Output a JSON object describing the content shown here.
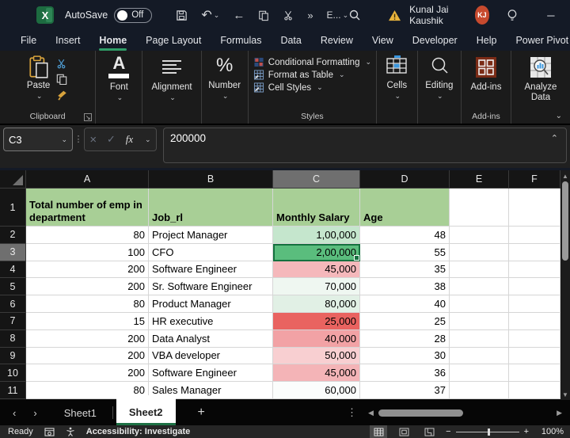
{
  "title_bar": {
    "autosave_label": "AutoSave",
    "autosave_state": "Off",
    "quick_access_overflow": "E...",
    "user_name": "Kunal Jai Kaushik",
    "user_initials": "KJ"
  },
  "menu_bar": {
    "tabs": [
      "File",
      "Insert",
      "Home",
      "Page Layout",
      "Formulas",
      "Data",
      "Review",
      "View",
      "Developer",
      "Help",
      "Power Pivot"
    ],
    "active_tab": "Home"
  },
  "ribbon": {
    "paste_label": "Paste",
    "clipboard_group_label": "Clipboard",
    "font_group_label": "Font",
    "alignment_group_label": "Alignment",
    "number_group_label": "Number",
    "conditional_formatting_label": "Conditional Formatting",
    "format_as_table_label": "Format as Table",
    "cell_styles_label": "Cell Styles",
    "styles_group_label": "Styles",
    "cells_group_label": "Cells",
    "editing_group_label": "Editing",
    "addins_button_label": "Add-ins",
    "analyze_data_label": "Analyze Data",
    "addins_group_label": "Add-ins"
  },
  "formula_bar": {
    "name_box": "C3",
    "fx_label": "fx",
    "value": "200000"
  },
  "grid": {
    "columns": [
      "A",
      "B",
      "C",
      "D",
      "E",
      "F"
    ],
    "selected_column": "C",
    "selected_row": "3",
    "selected_cell": "C3",
    "header_row_fill": "#a8cf96",
    "selection_color": "#15713f",
    "rows": [
      {
        "n": "1",
        "a": "Total number of emp in department",
        "b": "Job_rl",
        "c": "Monthly Salary",
        "d": "Age",
        "header": true
      },
      {
        "n": "2",
        "a": "80",
        "b": "Project Manager",
        "c": "1,00,000",
        "d": "48",
        "c_fill": "#c5e6cd"
      },
      {
        "n": "3",
        "a": "100",
        "b": "CFO",
        "c": "2,00,000",
        "d": "55",
        "c_fill": "#5abd7d",
        "selected": true
      },
      {
        "n": "4",
        "a": "200",
        "b": "Software Engineer",
        "c": "45,000",
        "d": "35",
        "c_fill": "#f5b8bb"
      },
      {
        "n": "5",
        "a": "200",
        "b": "Sr. Software Engineer",
        "c": "70,000",
        "d": "38",
        "c_fill": "#eff7f1"
      },
      {
        "n": "6",
        "a": "80",
        "b": "Product Manager",
        "c": "80,000",
        "d": "40",
        "c_fill": "#e1f0e5"
      },
      {
        "n": "7",
        "a": "15",
        "b": "HR executive",
        "c": "25,000",
        "d": "25",
        "c_fill": "#e96360"
      },
      {
        "n": "8",
        "a": "200",
        "b": "Data Analyst",
        "c": "40,000",
        "d": "28",
        "c_fill": "#f2a2a5"
      },
      {
        "n": "9",
        "a": "200",
        "b": "VBA developer",
        "c": "50,000",
        "d": "30",
        "c_fill": "#f8cfd1"
      },
      {
        "n": "10",
        "a": "200",
        "b": "Software Engineer",
        "c": "45,000",
        "d": "36",
        "c_fill": "#f4b4b7"
      },
      {
        "n": "11",
        "a": "80",
        "b": "Sales Manager",
        "c": "60,000",
        "d": "37",
        "c_fill": "#fbfdfc"
      }
    ]
  },
  "sheet_tabs": {
    "tabs": [
      "Sheet1",
      "Sheet2"
    ],
    "active_tab": "Sheet2"
  },
  "status_bar": {
    "mode": "Ready",
    "accessibility": "Accessibility: Investigate",
    "zoom_level": "100%"
  }
}
